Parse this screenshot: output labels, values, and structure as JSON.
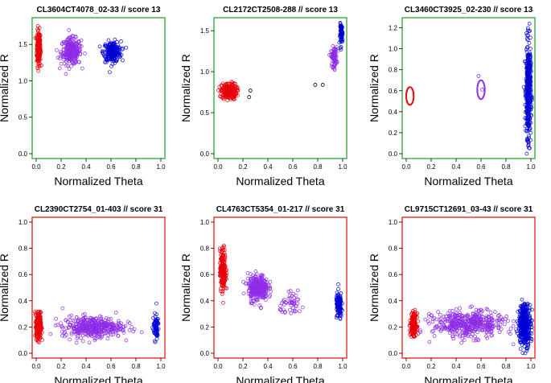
{
  "chart_data": [
    {
      "type": "scatter",
      "title": "CL3604CT4078_02-33  // score  13",
      "xlabel": "Normalized Theta",
      "ylabel": "Normalized R",
      "xlim": [
        0,
        1
      ],
      "ylim": [
        0,
        1.8
      ],
      "xticks": [
        "0.0",
        "0.2",
        "0.4",
        "0.6",
        "0.8",
        "1.0"
      ],
      "yticks": [
        "0.0",
        "0.5",
        "1.0",
        "1.5"
      ],
      "frame_color": "#4caf50",
      "clusters": [
        {
          "color": "#e8000b",
          "cx": 0.02,
          "cy": 1.45,
          "sx": 0.008,
          "sy": 0.12,
          "n": 200
        },
        {
          "color": "#8e2ce8",
          "cx": 0.28,
          "cy": 1.4,
          "sx": 0.04,
          "sy": 0.09,
          "n": 250
        },
        {
          "color": "#0000d4",
          "cx": 0.61,
          "cy": 1.4,
          "sx": 0.035,
          "sy": 0.07,
          "n": 220
        }
      ]
    },
    {
      "type": "scatter",
      "title": "CL2172CT2508-288  // score  13",
      "xlabel": "Normalized Theta",
      "ylabel": "Normalized R",
      "xlim": [
        0,
        1
      ],
      "ylim": [
        0,
        1.6
      ],
      "xticks": [
        "0.0",
        "0.2",
        "0.4",
        "0.6",
        "0.8",
        "1.0"
      ],
      "yticks": [
        "0.0",
        "0.5",
        "1.0",
        "1.5"
      ],
      "frame_color": "#4caf50",
      "clusters": [
        {
          "color": "#e8000b",
          "cx": 0.09,
          "cy": 0.76,
          "sx": 0.03,
          "sy": 0.05,
          "n": 250
        },
        {
          "color": "#8e2ce8",
          "cx": 0.93,
          "cy": 1.18,
          "sx": 0.012,
          "sy": 0.06,
          "n": 80
        },
        {
          "color": "#0000d4",
          "cx": 0.99,
          "cy": 1.46,
          "sx": 0.006,
          "sy": 0.06,
          "n": 70
        }
      ],
      "points": [
        {
          "color": "#000000",
          "x": 0.26,
          "y": 0.77
        },
        {
          "color": "#000000",
          "x": 0.25,
          "y": 0.69
        },
        {
          "color": "#000000",
          "x": 0.78,
          "y": 0.84
        },
        {
          "color": "#000000",
          "x": 0.84,
          "y": 0.84
        }
      ]
    },
    {
      "type": "scatter",
      "title": "CL3460CT3925_02-230  // score  13",
      "xlabel": "Normalized Theta",
      "ylabel": "Normalized R",
      "xlim": [
        0,
        1
      ],
      "ylim": [
        0,
        1.25
      ],
      "xticks": [
        "0.0",
        "0.2",
        "0.4",
        "0.6",
        "0.8",
        "1.0"
      ],
      "yticks": [
        "0.0",
        "0.2",
        "0.4",
        "0.6",
        "0.8",
        "1.0",
        "1.2"
      ],
      "frame_color": "#4caf50",
      "clusters": [
        {
          "color": "#0000d4",
          "cx": 0.98,
          "cy": 0.6,
          "sx": 0.01,
          "sy": 0.22,
          "n": 450
        }
      ],
      "ellipses": [
        {
          "color": "#e8000b",
          "cx": 0.03,
          "cy": 0.55,
          "rx": 0.03,
          "ry": 0.085
        },
        {
          "color": "#8e2ce8",
          "cx": 0.6,
          "cy": 0.61,
          "rx": 0.03,
          "ry": 0.09
        }
      ],
      "points": [
        {
          "color": "#8e2ce8",
          "x": 0.58,
          "y": 0.74
        },
        {
          "color": "#8e2ce8",
          "x": 0.61,
          "y": 0.61
        }
      ]
    },
    {
      "type": "scatter",
      "title": "CL2390CT2754_01-403  // score  31",
      "xlabel": "Normalized Theta",
      "ylabel": "Normalized R",
      "xlim": [
        0,
        1
      ],
      "ylim": [
        0,
        1.0
      ],
      "xticks": [
        "0.0",
        "0.2",
        "0.4",
        "0.6",
        "0.8",
        "1.0"
      ],
      "yticks": [
        "0.0",
        "0.2",
        "0.4",
        "0.6",
        "0.8",
        "1.0"
      ],
      "frame_color": "#e53935",
      "clusters": [
        {
          "color": "#e8000b",
          "cx": 0.02,
          "cy": 0.21,
          "sx": 0.01,
          "sy": 0.05,
          "n": 300
        },
        {
          "color": "#8e2ce8",
          "cx": 0.45,
          "cy": 0.2,
          "sx": 0.12,
          "sy": 0.04,
          "n": 400
        },
        {
          "color": "#0000d4",
          "cx": 0.96,
          "cy": 0.2,
          "sx": 0.012,
          "sy": 0.05,
          "n": 70
        }
      ]
    },
    {
      "type": "scatter",
      "title": "CL4763CT5354_01-217  // score  31",
      "xlabel": "Normalized Theta",
      "ylabel": "Normalized R",
      "xlim": [
        0,
        1
      ],
      "ylim": [
        0,
        1.0
      ],
      "xticks": [
        "0.0",
        "0.2",
        "0.4",
        "0.6",
        "0.8",
        "1.0"
      ],
      "yticks": [
        "0.0",
        "0.2",
        "0.4",
        "0.6",
        "0.8",
        "1.0"
      ],
      "frame_color": "#e53935",
      "clusters": [
        {
          "color": "#e8000b",
          "cx": 0.04,
          "cy": 0.63,
          "sx": 0.012,
          "sy": 0.08,
          "n": 200
        },
        {
          "color": "#8e2ce8",
          "cx": 0.32,
          "cy": 0.5,
          "sx": 0.04,
          "sy": 0.05,
          "n": 300
        },
        {
          "color": "#8e2ce8",
          "cx": 0.6,
          "cy": 0.37,
          "sx": 0.05,
          "sy": 0.04,
          "n": 50
        },
        {
          "color": "#0000d4",
          "cx": 0.97,
          "cy": 0.36,
          "sx": 0.012,
          "sy": 0.05,
          "n": 120
        }
      ]
    },
    {
      "type": "scatter",
      "title": "CL9715CT12691_03-43  // score  31",
      "xlabel": "Normalized Theta",
      "ylabel": "Normalized R",
      "xlim": [
        0,
        1
      ],
      "ylim": [
        0,
        1.0
      ],
      "xticks": [
        "0.0",
        "0.2",
        "0.4",
        "0.6",
        "0.8",
        "1.0"
      ],
      "yticks": [
        "0.0",
        "0.2",
        "0.4",
        "0.6",
        "0.8",
        "1.0"
      ],
      "frame_color": "#e53935",
      "clusters": [
        {
          "color": "#e8000b",
          "cx": 0.06,
          "cy": 0.22,
          "sx": 0.012,
          "sy": 0.04,
          "n": 200
        },
        {
          "color": "#8e2ce8",
          "cx": 0.5,
          "cy": 0.22,
          "sx": 0.14,
          "sy": 0.05,
          "n": 450
        },
        {
          "color": "#0000d4",
          "cx": 0.95,
          "cy": 0.22,
          "sx": 0.025,
          "sy": 0.08,
          "n": 350
        }
      ]
    }
  ]
}
